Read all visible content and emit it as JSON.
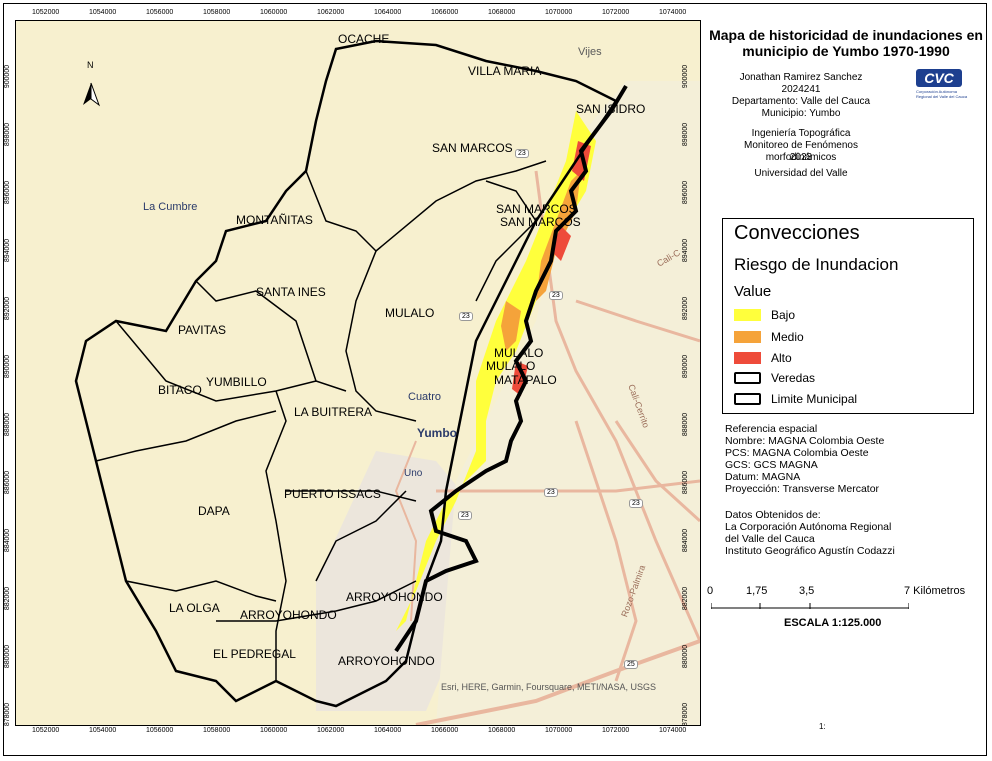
{
  "map": {
    "title_line1": "Mapa de historicidad de inundaciones en",
    "title_line2": "municipio de Yumbo 1970-1990",
    "author": "Jonathan Ramirez Sanchez",
    "code": "2024241",
    "department": "Departamento: Valle del Cauca",
    "municipality": "Municipio: Yumbo",
    "program": "Ingeniería Topográfica",
    "course": "Monitoreo de Fenómenos morfodinámicos",
    "year": "2023",
    "university": "Universidad del Valle",
    "logo_text": "CVC",
    "logo_subtext": "Corporación Autónoma Regional del Valle del Cauca",
    "north_label": "N",
    "attribution": "Esri, HERE, Garmin, Foursquare, METI/NASA, USGS",
    "page_marker": "1:"
  },
  "legend": {
    "heading": "Convecciones",
    "subheading": "Riesgo de Inundacion",
    "value_label": "Value",
    "items": [
      {
        "label": "Bajo",
        "color": "#ffff3c"
      },
      {
        "label": "Medio",
        "color": "#f5a33a"
      },
      {
        "label": "Alto",
        "color": "#ee4b3a"
      }
    ],
    "lines": [
      {
        "label": "Veredas"
      },
      {
        "label": "Limite Municipal"
      }
    ]
  },
  "reference": {
    "heading": "Referencia espacial",
    "lines": [
      "Nombre: MAGNA Colombia Oeste",
      "PCS: MAGNA Colombia Oeste",
      "GCS: GCS MAGNA",
      "Datum: MAGNA",
      "Proyección: Transverse Mercator"
    ],
    "source_heading": "Datos Obtenidos de:",
    "source_lines": [
      "La Corporación Autónoma Regional",
      "del Valle del Cauca",
      "Instituto Geográfico Agustín Codazzi"
    ]
  },
  "scale": {
    "labels": [
      "0",
      "1,75",
      "3,5",
      "7 Kilómetros"
    ],
    "ratio": "ESCALA 1:125.000"
  },
  "ticks": {
    "x": [
      "1052000",
      "1054000",
      "1056000",
      "1058000",
      "1060000",
      "1062000",
      "1064000",
      "1066000",
      "1068000",
      "1070000",
      "1072000",
      "1074000"
    ],
    "y": [
      "900000",
      "898000",
      "896000",
      "894000",
      "892000",
      "890000",
      "888000",
      "886000",
      "884000",
      "882000",
      "880000",
      "878000"
    ]
  },
  "place_labels": [
    {
      "text": "OCACHE"
    },
    {
      "text": "VILLA MARIA"
    },
    {
      "text": "Vijes"
    },
    {
      "text": "SAN ISIDRO"
    },
    {
      "text": "SAN MARCOS"
    },
    {
      "text": "SAN MARCOS"
    },
    {
      "text": "SAN MARCOS"
    },
    {
      "text": "La Cumbre"
    },
    {
      "text": "MONTAÑITAS"
    },
    {
      "text": "SANTA INES"
    },
    {
      "text": "MULALO"
    },
    {
      "text": "PAVITAS"
    },
    {
      "text": "MULALO"
    },
    {
      "text": "MULALO"
    },
    {
      "text": "MATAPALO"
    },
    {
      "text": "BITACO"
    },
    {
      "text": "YUMBILLO"
    },
    {
      "text": "LA BUITRERA"
    },
    {
      "text": "Cuatro"
    },
    {
      "text": "Yumbo"
    },
    {
      "text": "Uno"
    },
    {
      "text": "DAPA"
    },
    {
      "text": "PUERTO ISSACS"
    },
    {
      "text": "ARROYOHONDO"
    },
    {
      "text": "LA OLGA"
    },
    {
      "text": "ARROYOHONDO"
    },
    {
      "text": "EL PEDREGAL"
    },
    {
      "text": "ARROYOHONDO"
    },
    {
      "text": "Cali-C"
    },
    {
      "text": "Cali-Cerrito"
    },
    {
      "text": "Rozo-Palmira"
    }
  ],
  "road_shields": [
    "23",
    "23",
    "23",
    "23",
    "23",
    "23",
    "25"
  ]
}
